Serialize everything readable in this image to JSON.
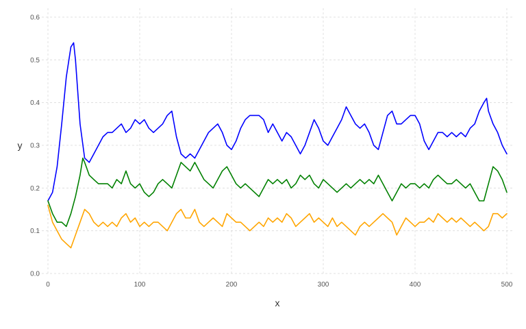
{
  "chart_data": {
    "type": "line",
    "title": "",
    "xlabel": "x",
    "ylabel": "y",
    "xlim": [
      0,
      500
    ],
    "ylim": [
      0,
      0.6
    ],
    "xticks": [
      0,
      100,
      200,
      300,
      400,
      500
    ],
    "yticks": [
      0.0,
      0.1,
      0.2,
      0.3,
      0.4,
      0.5,
      0.6
    ],
    "ytick_labels": [
      "0.0",
      "0.1",
      "0.2",
      "0.3",
      "0.4",
      "0.5",
      "0.6"
    ],
    "grid": true,
    "legend": "none",
    "colors": [
      "#0000ff",
      "#008000",
      "#ffa500"
    ],
    "series": [
      {
        "color": "#0000ff",
        "x": [
          0,
          5,
          10,
          15,
          20,
          25,
          28,
          30,
          35,
          40,
          45,
          50,
          55,
          60,
          65,
          70,
          75,
          80,
          85,
          90,
          95,
          100,
          105,
          110,
          115,
          120,
          125,
          130,
          135,
          140,
          145,
          150,
          155,
          160,
          165,
          170,
          175,
          180,
          185,
          190,
          195,
          200,
          205,
          210,
          215,
          220,
          225,
          230,
          235,
          240,
          245,
          250,
          255,
          260,
          265,
          270,
          275,
          280,
          285,
          290,
          295,
          300,
          305,
          310,
          315,
          320,
          325,
          330,
          335,
          340,
          345,
          350,
          355,
          360,
          365,
          370,
          375,
          380,
          385,
          390,
          395,
          400,
          405,
          410,
          415,
          420,
          425,
          430,
          435,
          440,
          445,
          450,
          455,
          460,
          465,
          470,
          475,
          478,
          480,
          485,
          490,
          495,
          500
        ],
        "y": [
          0.17,
          0.19,
          0.25,
          0.35,
          0.46,
          0.53,
          0.54,
          0.5,
          0.35,
          0.27,
          0.26,
          0.28,
          0.3,
          0.32,
          0.33,
          0.33,
          0.34,
          0.35,
          0.33,
          0.34,
          0.36,
          0.35,
          0.36,
          0.34,
          0.33,
          0.34,
          0.35,
          0.37,
          0.38,
          0.32,
          0.28,
          0.27,
          0.28,
          0.27,
          0.29,
          0.31,
          0.33,
          0.34,
          0.35,
          0.33,
          0.3,
          0.29,
          0.31,
          0.34,
          0.36,
          0.37,
          0.37,
          0.37,
          0.36,
          0.33,
          0.35,
          0.33,
          0.31,
          0.33,
          0.32,
          0.3,
          0.28,
          0.3,
          0.33,
          0.36,
          0.34,
          0.31,
          0.3,
          0.32,
          0.34,
          0.36,
          0.39,
          0.37,
          0.35,
          0.34,
          0.35,
          0.33,
          0.3,
          0.29,
          0.33,
          0.37,
          0.38,
          0.35,
          0.35,
          0.36,
          0.37,
          0.37,
          0.35,
          0.31,
          0.29,
          0.31,
          0.33,
          0.33,
          0.32,
          0.33,
          0.32,
          0.33,
          0.32,
          0.34,
          0.35,
          0.38,
          0.4,
          0.41,
          0.38,
          0.35,
          0.33,
          0.3,
          0.28
        ]
      },
      {
        "color": "#008000",
        "x": [
          0,
          5,
          10,
          15,
          20,
          25,
          30,
          35,
          38,
          40,
          45,
          50,
          55,
          60,
          65,
          70,
          75,
          80,
          85,
          90,
          95,
          100,
          105,
          110,
          115,
          120,
          125,
          130,
          135,
          140,
          145,
          150,
          155,
          160,
          165,
          170,
          175,
          180,
          185,
          190,
          195,
          200,
          205,
          210,
          215,
          220,
          225,
          230,
          235,
          240,
          245,
          250,
          255,
          260,
          265,
          270,
          275,
          280,
          285,
          290,
          295,
          300,
          305,
          310,
          315,
          320,
          325,
          330,
          335,
          340,
          345,
          350,
          355,
          360,
          365,
          370,
          375,
          380,
          385,
          390,
          395,
          400,
          405,
          410,
          415,
          420,
          425,
          430,
          435,
          440,
          445,
          450,
          455,
          460,
          465,
          470,
          475,
          480,
          485,
          490,
          495,
          500
        ],
        "y": [
          0.17,
          0.14,
          0.12,
          0.12,
          0.11,
          0.14,
          0.18,
          0.23,
          0.27,
          0.26,
          0.23,
          0.22,
          0.21,
          0.21,
          0.21,
          0.2,
          0.22,
          0.21,
          0.24,
          0.21,
          0.2,
          0.21,
          0.19,
          0.18,
          0.19,
          0.21,
          0.22,
          0.21,
          0.2,
          0.23,
          0.26,
          0.25,
          0.24,
          0.26,
          0.24,
          0.22,
          0.21,
          0.2,
          0.22,
          0.24,
          0.25,
          0.23,
          0.21,
          0.2,
          0.21,
          0.2,
          0.19,
          0.18,
          0.2,
          0.22,
          0.21,
          0.22,
          0.21,
          0.22,
          0.2,
          0.21,
          0.23,
          0.22,
          0.23,
          0.21,
          0.2,
          0.22,
          0.21,
          0.2,
          0.19,
          0.2,
          0.21,
          0.2,
          0.21,
          0.22,
          0.21,
          0.22,
          0.21,
          0.23,
          0.21,
          0.19,
          0.17,
          0.19,
          0.21,
          0.2,
          0.21,
          0.21,
          0.2,
          0.21,
          0.2,
          0.22,
          0.23,
          0.22,
          0.21,
          0.21,
          0.22,
          0.21,
          0.2,
          0.21,
          0.19,
          0.17,
          0.17,
          0.21,
          0.25,
          0.24,
          0.22,
          0.19
        ]
      },
      {
        "color": "#ffa500",
        "x": [
          0,
          5,
          10,
          15,
          20,
          25,
          30,
          35,
          40,
          45,
          50,
          55,
          60,
          65,
          70,
          75,
          80,
          85,
          90,
          95,
          100,
          105,
          110,
          115,
          120,
          125,
          130,
          135,
          140,
          145,
          150,
          155,
          160,
          165,
          170,
          175,
          180,
          185,
          190,
          195,
          200,
          205,
          210,
          215,
          220,
          225,
          230,
          235,
          240,
          245,
          250,
          255,
          260,
          265,
          270,
          275,
          280,
          285,
          290,
          295,
          300,
          305,
          310,
          315,
          320,
          325,
          330,
          335,
          340,
          345,
          350,
          355,
          360,
          365,
          370,
          375,
          380,
          385,
          390,
          395,
          400,
          405,
          410,
          415,
          420,
          425,
          430,
          435,
          440,
          445,
          450,
          455,
          460,
          465,
          470,
          475,
          480,
          485,
          490,
          495,
          500
        ],
        "y": [
          0.16,
          0.12,
          0.1,
          0.08,
          0.07,
          0.06,
          0.09,
          0.12,
          0.15,
          0.14,
          0.12,
          0.11,
          0.12,
          0.11,
          0.12,
          0.11,
          0.13,
          0.14,
          0.12,
          0.13,
          0.11,
          0.12,
          0.11,
          0.12,
          0.12,
          0.11,
          0.1,
          0.12,
          0.14,
          0.15,
          0.13,
          0.13,
          0.15,
          0.12,
          0.11,
          0.12,
          0.13,
          0.12,
          0.11,
          0.14,
          0.13,
          0.12,
          0.12,
          0.11,
          0.1,
          0.11,
          0.12,
          0.11,
          0.13,
          0.12,
          0.13,
          0.12,
          0.14,
          0.13,
          0.11,
          0.12,
          0.13,
          0.14,
          0.12,
          0.13,
          0.12,
          0.11,
          0.13,
          0.11,
          0.12,
          0.11,
          0.1,
          0.09,
          0.11,
          0.12,
          0.11,
          0.12,
          0.13,
          0.14,
          0.13,
          0.12,
          0.09,
          0.11,
          0.13,
          0.12,
          0.11,
          0.12,
          0.12,
          0.13,
          0.12,
          0.14,
          0.13,
          0.12,
          0.13,
          0.12,
          0.13,
          0.12,
          0.11,
          0.12,
          0.11,
          0.1,
          0.11,
          0.14,
          0.14,
          0.13,
          0.14
        ]
      }
    ]
  }
}
